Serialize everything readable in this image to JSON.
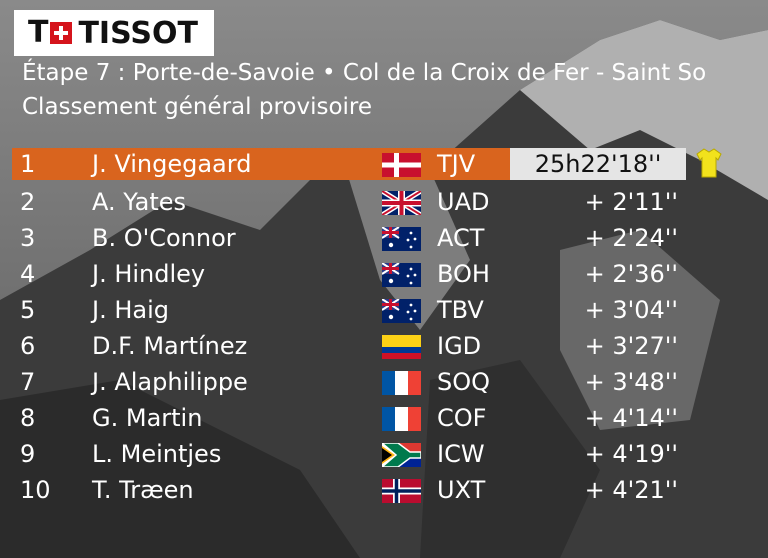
{
  "logo": {
    "mark": "T",
    "word": "TISSOT"
  },
  "stage": {
    "title": "Étape 7 : Porte-de-Savoie • Col de la Croix de Fer - Saint So",
    "subtitle": "Classement général provisoire"
  },
  "standings": [
    {
      "pos": "1",
      "name": "J. Vingegaard",
      "flag": "denmark-flag",
      "team": "TJV",
      "time": "25h22'18''"
    },
    {
      "pos": "2",
      "name": "A. Yates",
      "flag": "uk-flag",
      "team": "UAD",
      "time": "+ 2'11''"
    },
    {
      "pos": "3",
      "name": "B. O'Connor",
      "flag": "australia-flag",
      "team": "ACT",
      "time": "+ 2'24''"
    },
    {
      "pos": "4",
      "name": "J. Hindley",
      "flag": "australia-flag",
      "team": "BOH",
      "time": "+ 2'36''"
    },
    {
      "pos": "5",
      "name": "J. Haig",
      "flag": "australia-flag",
      "team": "TBV",
      "time": "+ 3'04''"
    },
    {
      "pos": "6",
      "name": "D.F. Martínez",
      "flag": "colombia-flag",
      "team": "IGD",
      "time": "+ 3'27''"
    },
    {
      "pos": "7",
      "name": "J. Alaphilippe",
      "flag": "france-flag",
      "team": "SOQ",
      "time": "+ 3'48''"
    },
    {
      "pos": "8",
      "name": "G. Martin",
      "flag": "france-flag",
      "team": "COF",
      "time": "+ 4'14''"
    },
    {
      "pos": "9",
      "name": "L. Meintjes",
      "flag": "south-africa-flag",
      "team": "ICW",
      "time": "+ 4'19''"
    },
    {
      "pos": "10",
      "name": "T. Træen",
      "flag": "norway-flag",
      "team": "UXT",
      "time": "+ 4'21''"
    }
  ],
  "colors": {
    "leader_row": "#d9641e",
    "leader_time_box": "#e5e5e5",
    "yellow_jersey": "#f2e21c"
  }
}
